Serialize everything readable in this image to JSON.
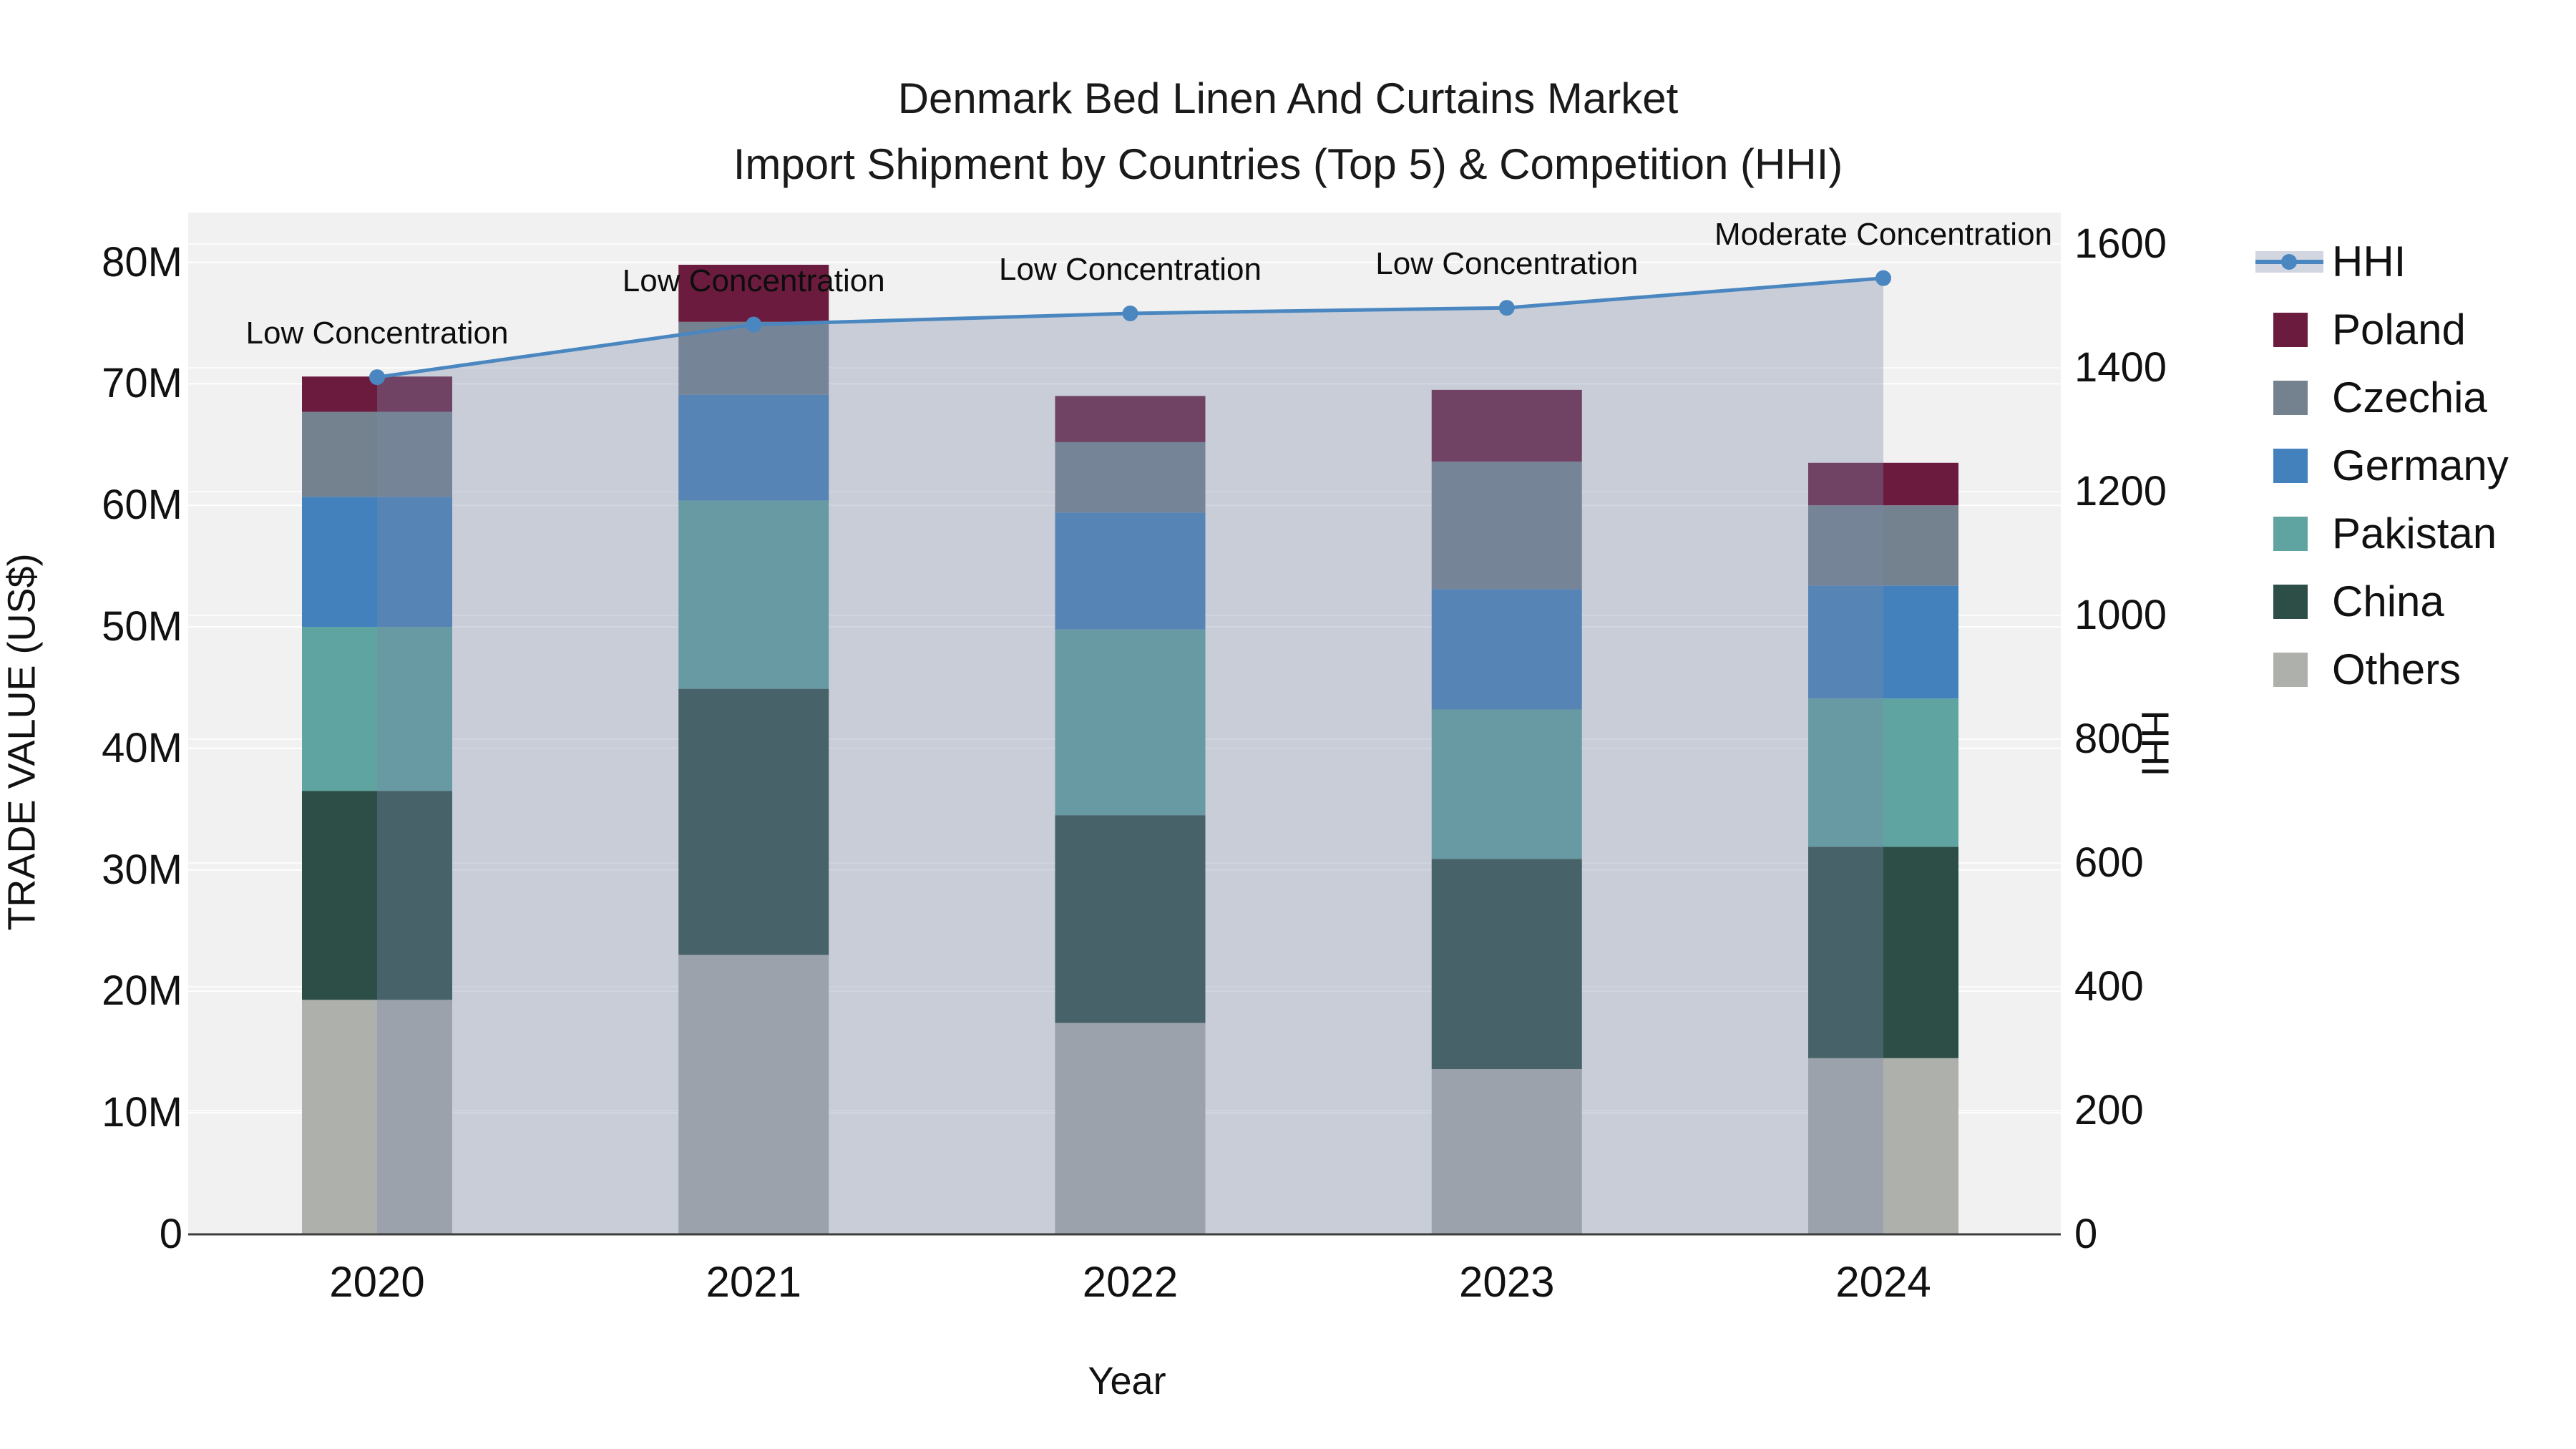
{
  "chart_data": {
    "type": "bar+line",
    "title_line1": "Denmark Bed Linen And Curtains Market",
    "title_line2": "Import Shipment by Countries (Top 5) & Competition (HHI)",
    "xlabel": "Year",
    "ylabel_left": "TRADE VALUE (US$)",
    "ylabel_right": "HHI",
    "categories": [
      "2020",
      "2021",
      "2022",
      "2023",
      "2024"
    ],
    "bar_unit": "millions USD",
    "series": [
      {
        "name": "Others",
        "color": "#AEB0AC",
        "values": [
          19.3,
          23.0,
          17.4,
          13.6,
          14.5
        ]
      },
      {
        "name": "China",
        "color": "#2C4E46",
        "values": [
          17.2,
          21.9,
          17.1,
          17.3,
          17.4
        ]
      },
      {
        "name": "Pakistan",
        "color": "#5FA4A1",
        "values": [
          13.5,
          15.5,
          15.3,
          12.3,
          12.2
        ]
      },
      {
        "name": "Germany",
        "color": "#4381BC",
        "values": [
          10.7,
          8.7,
          9.6,
          9.9,
          9.3
        ]
      },
      {
        "name": "Czechia",
        "color": "#74818F",
        "values": [
          7.0,
          6.0,
          5.8,
          10.5,
          6.6
        ]
      },
      {
        "name": "Poland",
        "color": "#6B1C3E",
        "values": [
          2.9,
          4.7,
          3.8,
          5.9,
          3.5
        ]
      }
    ],
    "hhi": {
      "name": "HHI",
      "line_color": "#4A87C0",
      "fill_color": "rgba(124,138,170,0.35)",
      "values": [
        1385,
        1470,
        1488,
        1497,
        1545
      ]
    },
    "annotations": [
      {
        "category": "2020",
        "text": "Low Concentration"
      },
      {
        "category": "2021",
        "text": "Low Concentration"
      },
      {
        "category": "2022",
        "text": "Low Concentration"
      },
      {
        "category": "2023",
        "text": "Low Concentration"
      },
      {
        "category": "2024",
        "text": "Moderate Concentration"
      }
    ],
    "legend_order": [
      "HHI",
      "Poland",
      "Czechia",
      "Germany",
      "Pakistan",
      "China",
      "Others"
    ],
    "y_left": {
      "ticks": [
        {
          "label": "0",
          "value": 0
        },
        {
          "label": "10M",
          "value": 10
        },
        {
          "label": "20M",
          "value": 20
        },
        {
          "label": "30M",
          "value": 30
        },
        {
          "label": "40M",
          "value": 40
        },
        {
          "label": "50M",
          "value": 50
        },
        {
          "label": "60M",
          "value": 60
        },
        {
          "label": "70M",
          "value": 70
        },
        {
          "label": "80M",
          "value": 80
        }
      ],
      "max": 84.1
    },
    "y_right": {
      "ticks": [
        {
          "label": "0",
          "value": 0
        },
        {
          "label": "200",
          "value": 200
        },
        {
          "label": "400",
          "value": 400
        },
        {
          "label": "600",
          "value": 600
        },
        {
          "label": "800",
          "value": 800
        },
        {
          "label": "1000",
          "value": 1000
        },
        {
          "label": "1200",
          "value": 1200
        },
        {
          "label": "1400",
          "value": 1400
        },
        {
          "label": "1600",
          "value": 1600
        }
      ],
      "max": 1651
    },
    "layout": {
      "plot_bg": "#F1F1F1",
      "grid_color": "#FFFFFF",
      "axis_line_color": "#3D3D3D",
      "text_color": "#111111",
      "legend_position": "right"
    }
  }
}
